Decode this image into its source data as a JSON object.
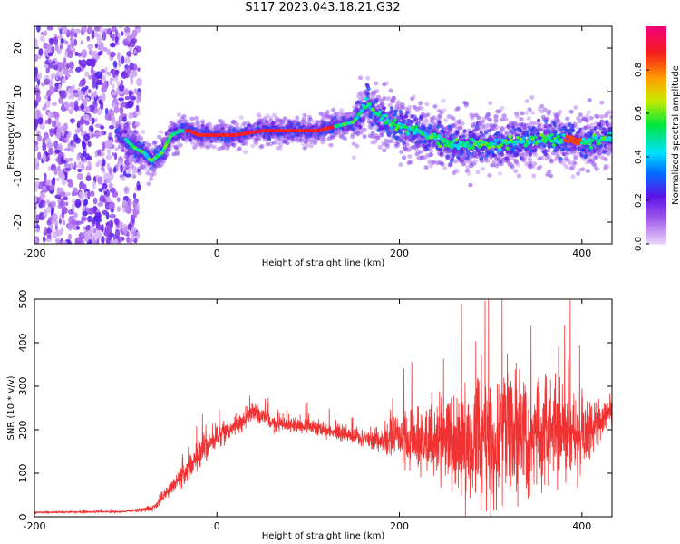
{
  "title": "S117.2023.043.18.21.G32",
  "chart_data": [
    {
      "type": "heatmap",
      "title": "S117.2023.043.18.21.G32",
      "xlabel": "Height of straight line (km)",
      "ylabel": "Frequency (Hz)",
      "xlim": [
        -200,
        433
      ],
      "ylim": [
        -25,
        25
      ],
      "xticks": [
        "-200",
        "0",
        "200",
        "400"
      ],
      "yticks": [
        "-20",
        "-10",
        "0",
        "10",
        "20"
      ],
      "colorbar": {
        "label": "Normalized spectral amplitude",
        "range": [
          0.0,
          1.0
        ],
        "ticks": [
          "0.0",
          "0.2",
          "0.4",
          "0.6",
          "0.8"
        ]
      },
      "ridge": {
        "x": [
          -200,
          -110,
          -100,
          -90,
          -80,
          -72,
          -60,
          -50,
          -40,
          -30,
          -20,
          0,
          20,
          50,
          80,
          110,
          130,
          150,
          160,
          165,
          170,
          180,
          200,
          230,
          260,
          300,
          350,
          390,
          400,
          433
        ],
        "y": [
          0,
          0,
          -1,
          -3,
          -4,
          -6,
          -4,
          0,
          1,
          1,
          0,
          0,
          0,
          1,
          1,
          1,
          2,
          3,
          6,
          8,
          6,
          4,
          2,
          0,
          -2,
          -2,
          -1,
          -1,
          -2,
          0
        ]
      }
    },
    {
      "type": "line",
      "xlabel": "Height of straight line (km)",
      "ylabel": "SNR (10 * v/v)",
      "xlim": [
        -200,
        433
      ],
      "ylim": [
        0,
        500
      ],
      "xticks": [
        "-200",
        "0",
        "200",
        "400"
      ],
      "yticks": [
        "0",
        "100",
        "200",
        "300",
        "400",
        "500"
      ],
      "color": "#f03232",
      "envelope": {
        "x": [
          -200,
          -100,
          -70,
          -40,
          -20,
          0,
          20,
          40,
          60,
          100,
          150,
          180,
          200,
          240,
          280,
          300,
          320,
          350,
          380,
          400,
          420,
          433
        ],
        "center": [
          10,
          12,
          20,
          90,
          140,
          185,
          210,
          240,
          215,
          210,
          185,
          175,
          180,
          175,
          175,
          180,
          195,
          200,
          195,
          190,
          225,
          240
        ],
        "noise": [
          3,
          3,
          8,
          30,
          40,
          30,
          25,
          25,
          25,
          22,
          20,
          40,
          70,
          110,
          150,
          160,
          170,
          140,
          120,
          110,
          50,
          50
        ]
      }
    }
  ]
}
